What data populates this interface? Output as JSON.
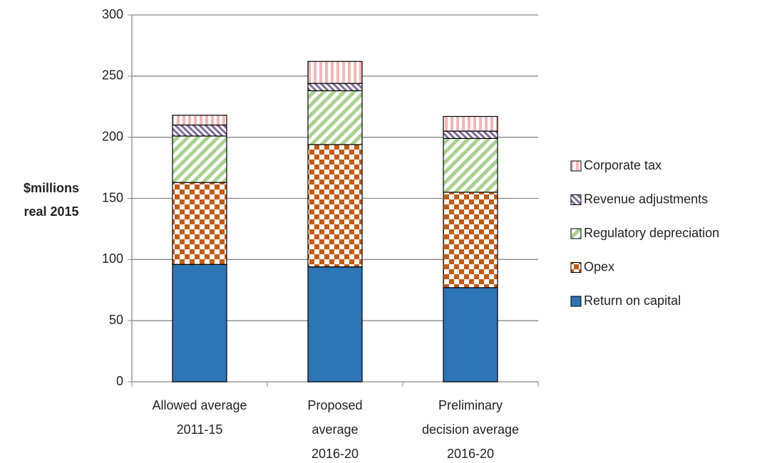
{
  "chart_data": {
    "type": "stacked-bar",
    "ylabel": [
      "$millions",
      "real 2015"
    ],
    "categories": [
      [
        "Allowed average",
        "2011-15"
      ],
      [
        "Proposed",
        "average",
        "2016-20"
      ],
      [
        "Preliminary",
        "decision average",
        "2016-20"
      ]
    ],
    "series": [
      {
        "name": "Return on capital",
        "color": "#2e75b6",
        "pattern": "solid",
        "values": [
          96,
          94,
          77
        ]
      },
      {
        "name": "Opex",
        "color": "#c55a11",
        "pattern": "checker",
        "values": [
          67,
          100,
          78
        ]
      },
      {
        "name": "Regulatory depreciation",
        "color": "#a9d18e",
        "pattern": "diagonal",
        "values": [
          38,
          44,
          44
        ]
      },
      {
        "name": "Revenue adjustments",
        "color": "#7f6a9a",
        "pattern": "diagonal-dense",
        "values": [
          9,
          6,
          6
        ]
      },
      {
        "name": "Corporate tax",
        "color": "#f4b6b6",
        "pattern": "vertical",
        "values": [
          8,
          18,
          12
        ]
      }
    ],
    "ylim": [
      0,
      300
    ],
    "yticks": [
      0,
      50,
      100,
      150,
      200,
      250,
      300
    ],
    "grid": true,
    "legend": "right"
  }
}
